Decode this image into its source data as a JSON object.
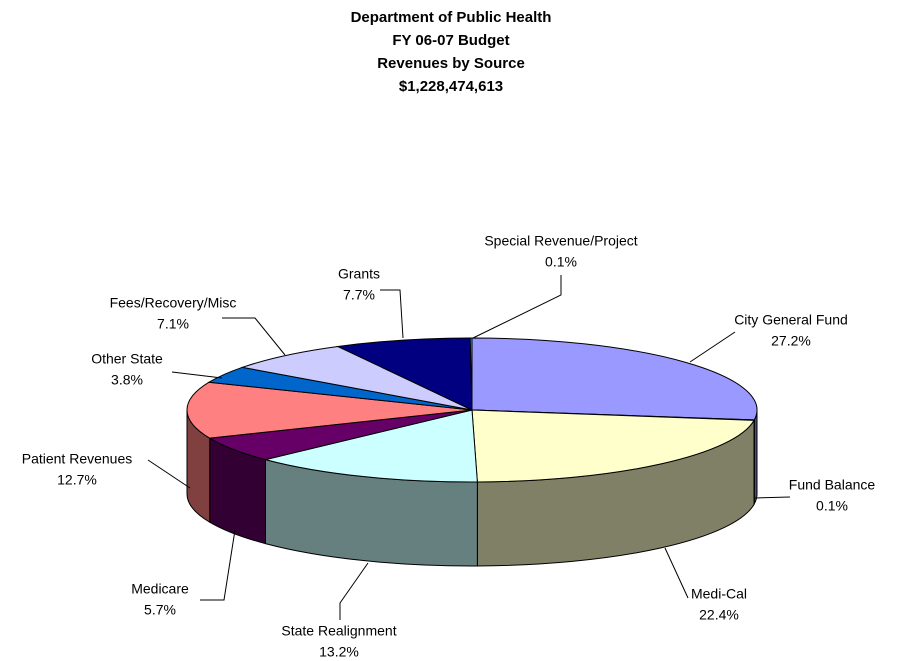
{
  "chart_data": {
    "type": "pie3d",
    "title": [
      "Department of Public Health",
      "FY 06-07 Budget",
      "Revenues by Source",
      "$1,228,474,613"
    ],
    "categories": [
      "City General Fund",
      "Fund Balance",
      "Medi-Cal",
      "State Realignment",
      "Medicare",
      "Patient Revenues",
      "Other State",
      "Fees/Recovery/Misc",
      "Grants",
      "Special Revenue/Project"
    ],
    "values": [
      27.2,
      0.1,
      22.4,
      13.2,
      5.7,
      12.7,
      3.8,
      7.1,
      7.7,
      0.1
    ],
    "value_labels": [
      "27.2%",
      "0.1%",
      "22.4%",
      "13.2%",
      "5.7%",
      "12.7%",
      "3.8%",
      "7.1%",
      "7.7%",
      "0.1%"
    ],
    "colors": [
      "#9999ff",
      "#993366",
      "#ffffcc",
      "#ccffff",
      "#660066",
      "#ff8080",
      "#0066cc",
      "#ccccff",
      "#000080",
      "#00ccff"
    ]
  }
}
